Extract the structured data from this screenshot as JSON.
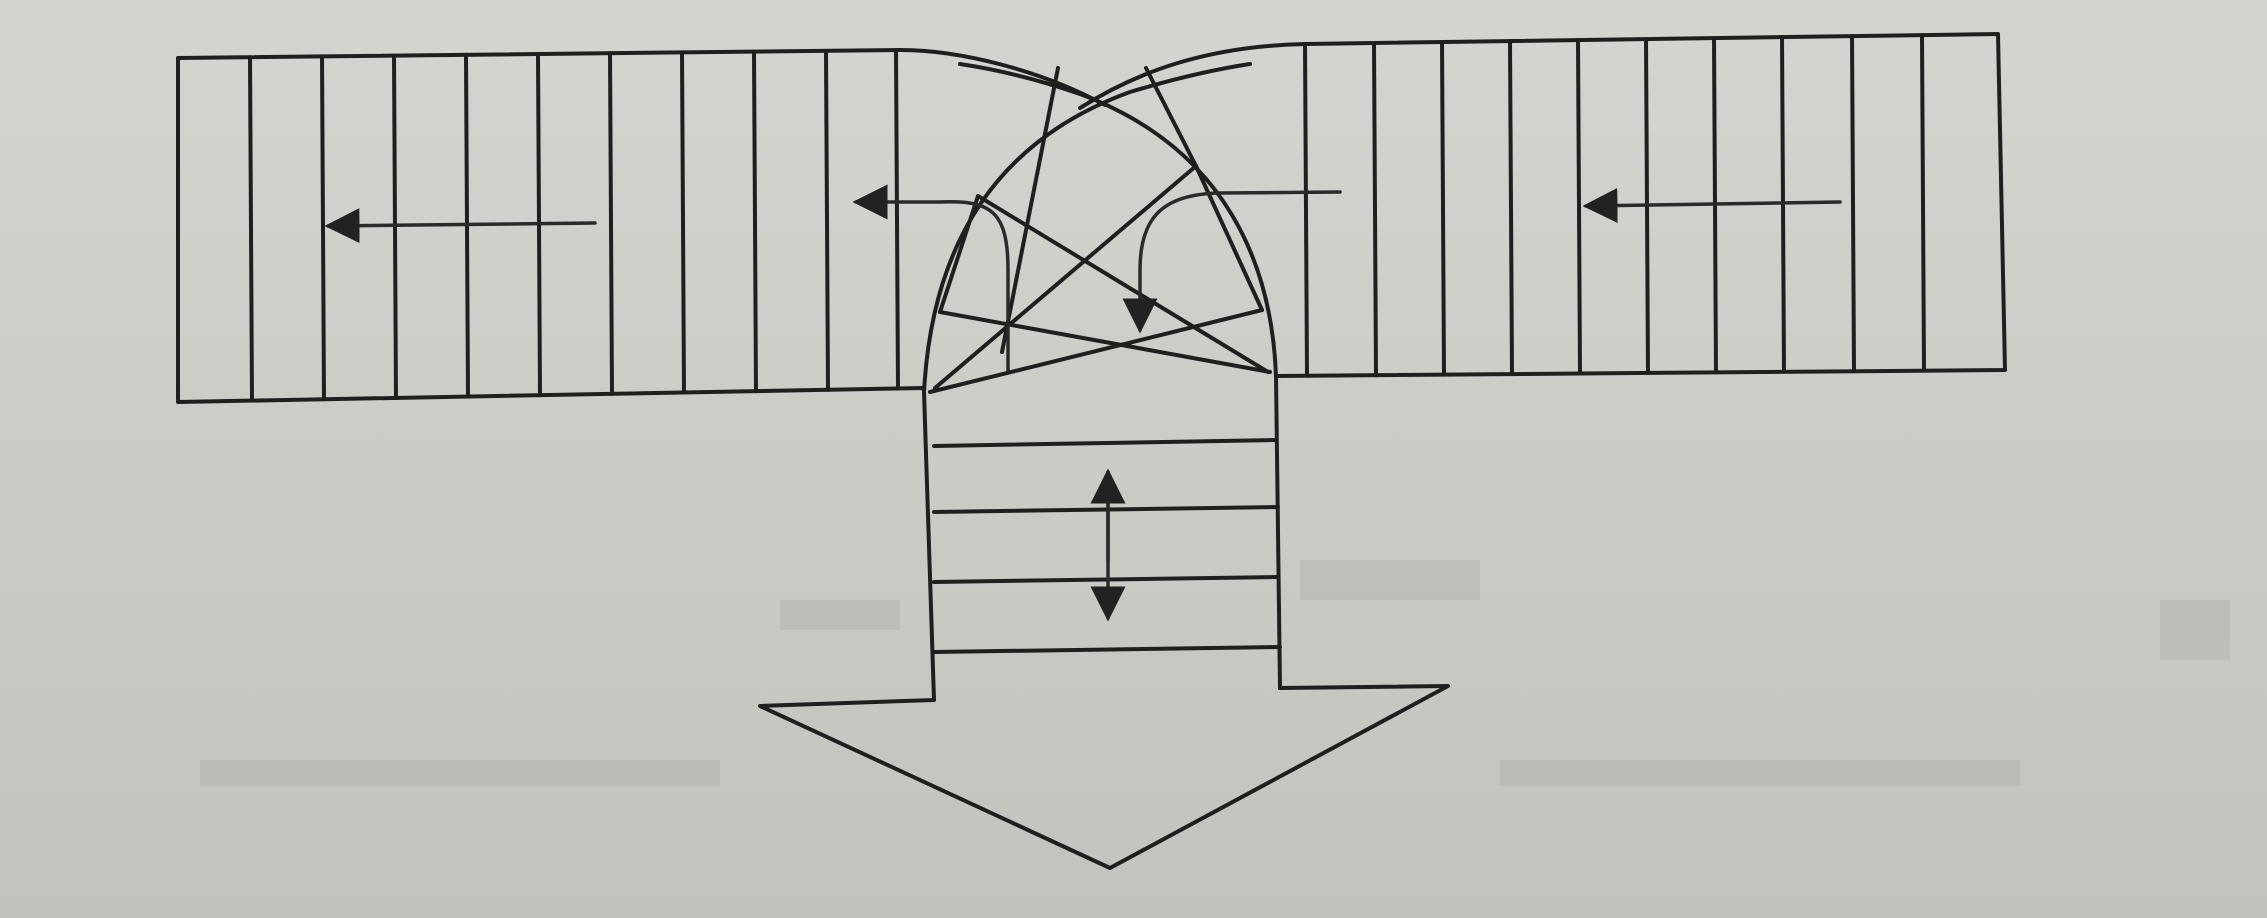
{
  "figure": {
    "description_text": "",
    "elements": {
      "left_wing": "left-hatched-region",
      "right_wing": "right-hatched-region",
      "center_dome": "crossed-arc-junction",
      "stem": "vertical-striped-stem",
      "output": "large-down-arrow"
    },
    "arrows": [
      {
        "name": "left-flow-arrow",
        "direction": "left"
      },
      {
        "name": "right-flow-arrow",
        "direction": "left"
      },
      {
        "name": "curved-flow-left",
        "direction": "up-left"
      },
      {
        "name": "curved-flow-right",
        "direction": "down"
      },
      {
        "name": "stem-double-arrow",
        "direction": "up-down"
      }
    ],
    "colors": {
      "paper": "#cfcfcb",
      "ink": "#1f1f1f"
    }
  }
}
